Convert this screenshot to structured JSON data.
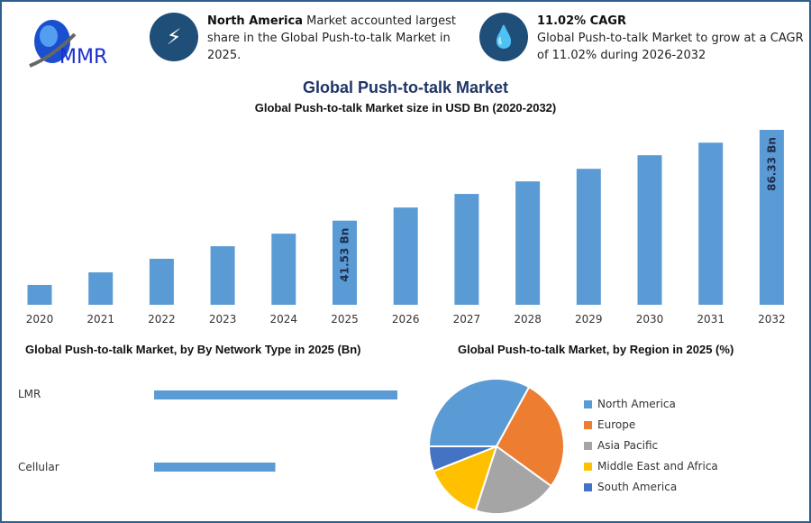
{
  "logo": {
    "text": "MMR"
  },
  "info1": {
    "icon": "lightning-icon",
    "bold": "North America",
    "text": " Market accounted largest share in the Global Push-to-talk Market in 2025."
  },
  "info2": {
    "icon": "hand-drop-icon",
    "bold": "11.02% CAGR",
    "text": "Global Push-to-talk Market to grow at a CAGR of 11.02% during 2026-2032"
  },
  "title": "Global Push-to-talk Market",
  "chart_data": [
    {
      "type": "bar",
      "title": "Global Push-to-talk Market size in USD Bn (2020-2032)",
      "categories": [
        "2020",
        "2021",
        "2022",
        "2023",
        "2024",
        "2025",
        "2026",
        "2027",
        "2028",
        "2029",
        "2030",
        "2031",
        "2032"
      ],
      "values": [
        9.8,
        16,
        22.7,
        28.9,
        35.1,
        41.53,
        48,
        54.7,
        60.9,
        67.1,
        73.8,
        80,
        86.33
      ],
      "data_labels": {
        "2025": "41.53 Bn",
        "2032": "86.33 Bn"
      },
      "color": "#5b9bd5",
      "ylim": [
        0,
        90
      ],
      "grid": false
    },
    {
      "type": "bar",
      "orientation": "horizontal",
      "title": "Global Push-to-talk Market, by By Network Type in 2025 (Bn)",
      "categories": [
        "LMR",
        "Cellular"
      ],
      "values": [
        27.7,
        13.8
      ],
      "color": "#5b9bd5"
    },
    {
      "type": "pie",
      "title": "Global Push-to-talk Market, by Region in 2025 (%)",
      "categories": [
        "North America",
        "Europe",
        "Asia Pacific",
        "Middle East and Africa",
        "South America"
      ],
      "values": [
        33,
        27,
        20,
        14,
        6
      ],
      "colors": [
        "#5b9bd5",
        "#ed7d31",
        "#a5a5a5",
        "#ffc000",
        "#4472c4"
      ],
      "legend": "right"
    }
  ]
}
